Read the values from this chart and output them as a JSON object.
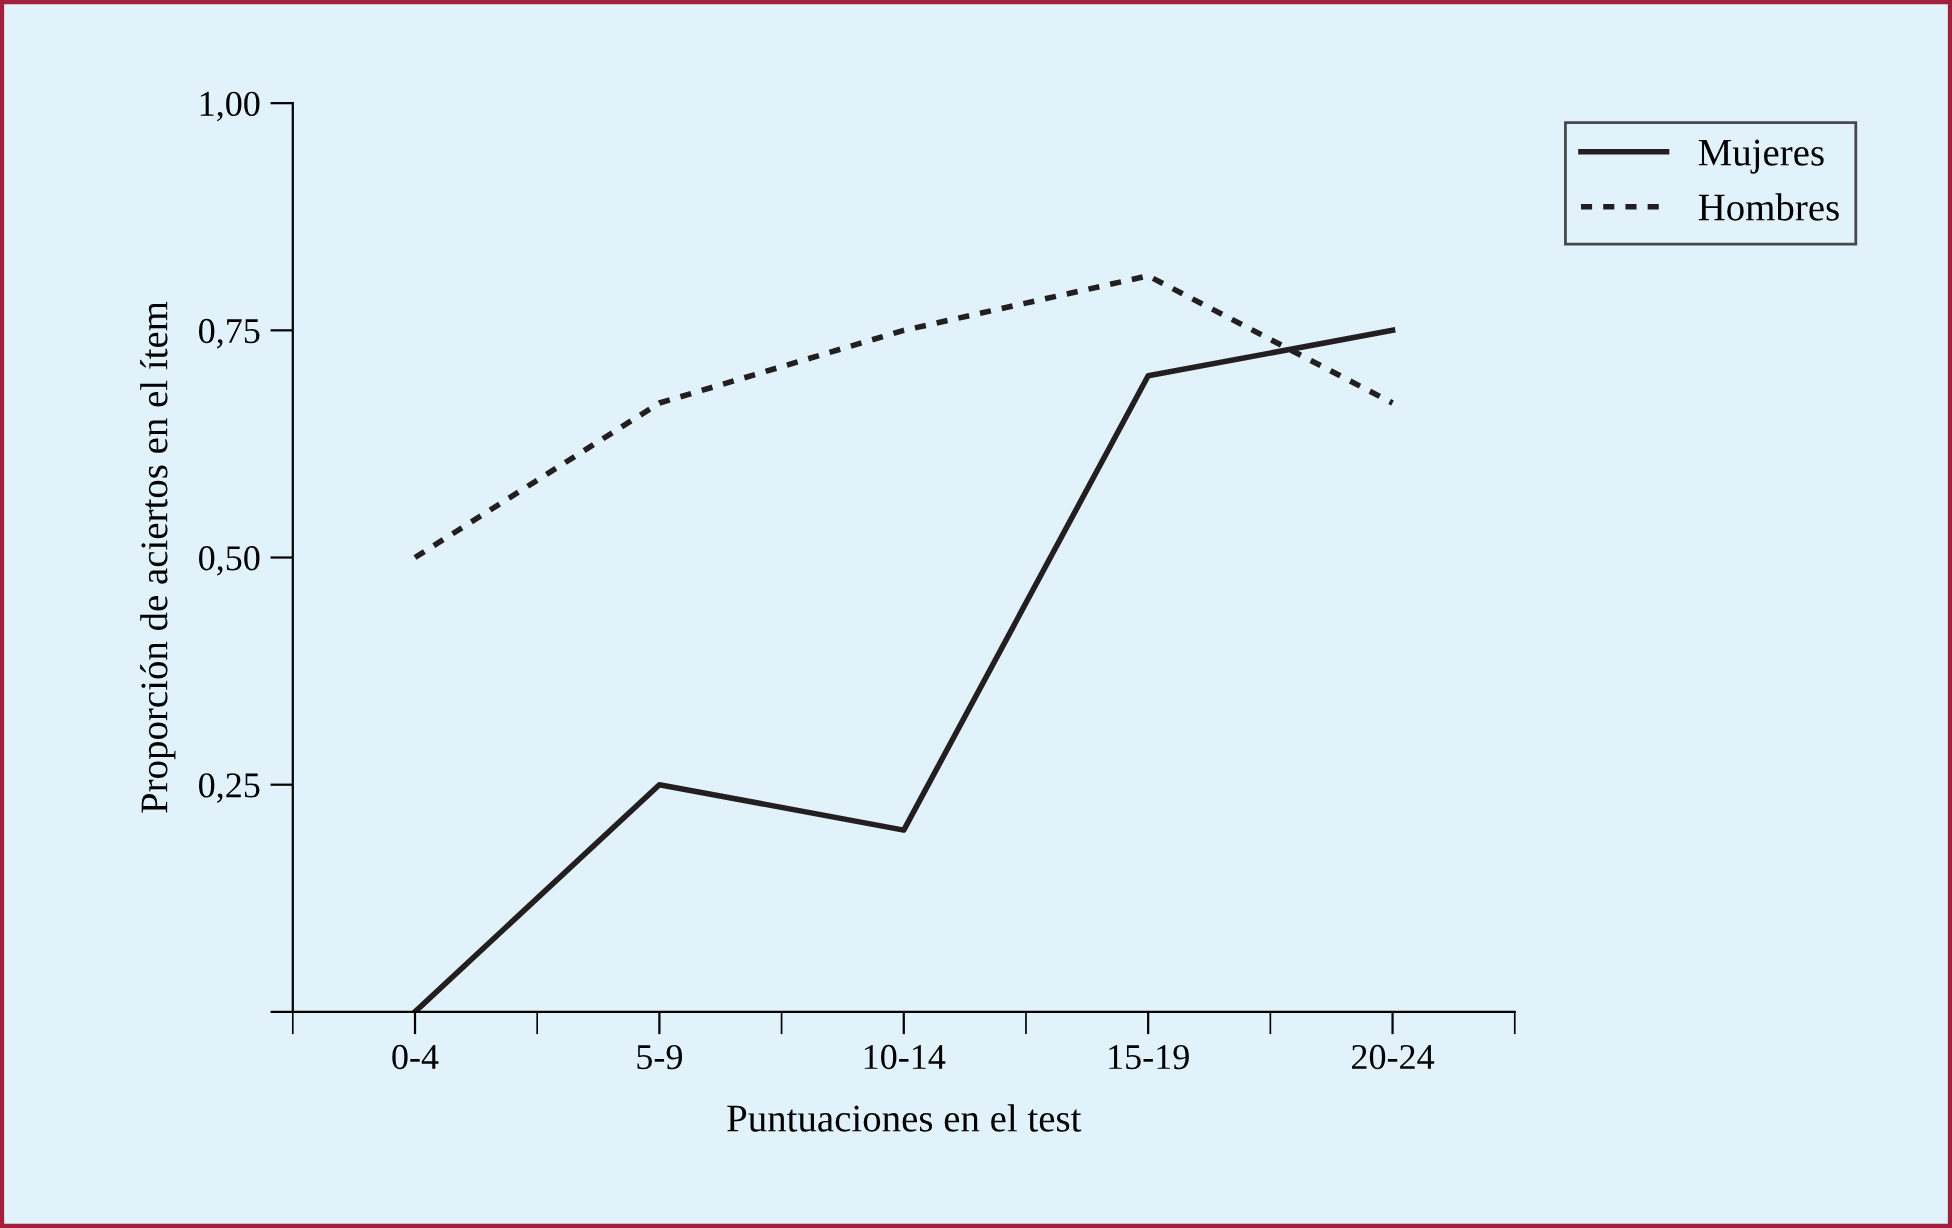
{
  "chart_data": {
    "type": "line",
    "xlabel": "Puntuaciones en el test",
    "ylabel": "Proporción de aciertos en el ítem",
    "categories": [
      "0-4",
      "5-9",
      "10-14",
      "15-19",
      "20-24"
    ],
    "series": [
      {
        "name": "Mujeres",
        "color": "#231f20",
        "line_style": "solid",
        "values": [
          0.0,
          0.25,
          0.2,
          0.7,
          0.75
        ]
      },
      {
        "name": "Hombres",
        "color": "#231f20",
        "line_style": "dotted",
        "values": [
          0.5,
          0.67,
          0.75,
          0.81,
          0.67
        ]
      }
    ],
    "ylim": [
      0,
      1
    ],
    "yticks": [
      {
        "value": 0,
        "label": null
      },
      {
        "value": 0.25,
        "label": "0,25"
      },
      {
        "value": 0.5,
        "label": "0,50"
      },
      {
        "value": 0.75,
        "label": "0,75"
      },
      {
        "value": 1,
        "label": "1,00"
      }
    ],
    "grid": false,
    "legend": "top right",
    "marker": "none"
  }
}
